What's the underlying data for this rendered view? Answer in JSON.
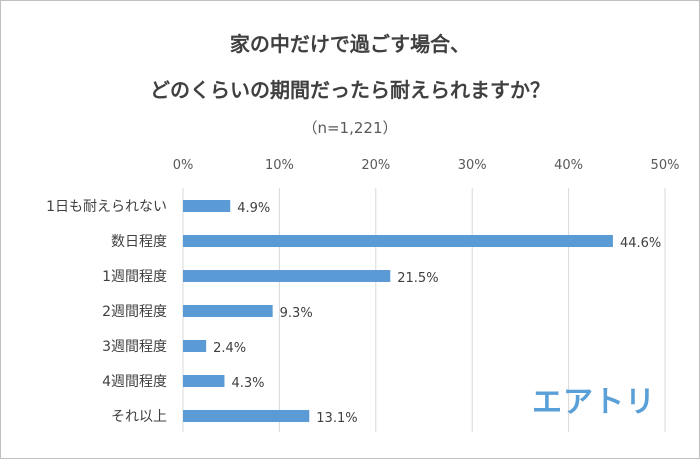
{
  "chart_data": {
    "type": "bar",
    "orientation": "horizontal",
    "title_lines": [
      "家の中だけで過ごす場合、",
      "どのくらいの期間だったら耐えられますか？"
    ],
    "subtitle": "（n=1,221）",
    "categories": [
      "1日も耐えられない",
      "数日程度",
      "1週間程度",
      "2週間程度",
      "3週間程度",
      "4週間程度",
      "それ以上"
    ],
    "values": [
      4.9,
      44.6,
      21.5,
      9.3,
      2.4,
      4.3,
      13.1
    ],
    "value_labels": [
      "4.9%",
      "44.6%",
      "21.5%",
      "9.3%",
      "2.4%",
      "4.3%",
      "13.1%"
    ],
    "xlim": [
      0,
      50
    ],
    "xticks": [
      "0%",
      "10%",
      "20%",
      "30%",
      "40%",
      "50%"
    ],
    "tick_values": [
      0,
      10,
      20,
      30,
      40,
      50
    ],
    "axis_position": "top",
    "grid": true,
    "bar_color": "#5b9bd5"
  },
  "logo_text": "エアトリ"
}
